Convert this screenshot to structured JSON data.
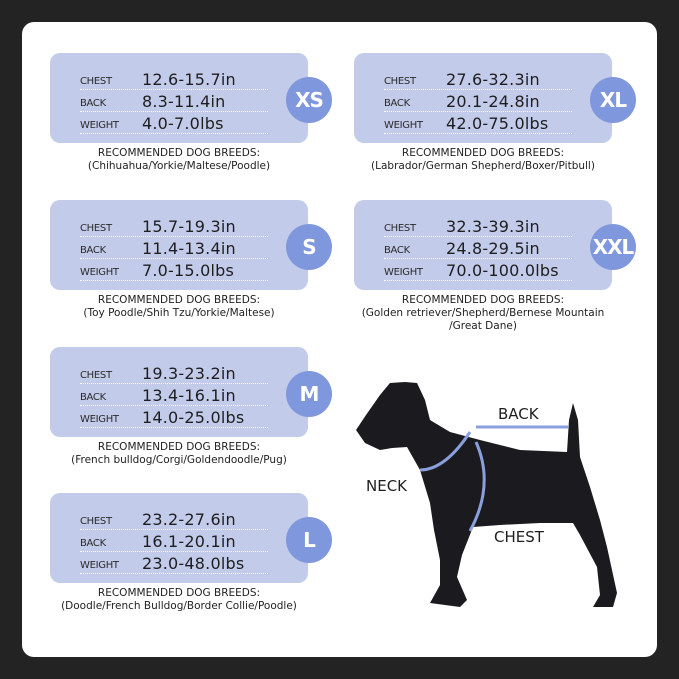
{
  "row_labels": {
    "chest": "CHEST",
    "back": "BACK",
    "weight": "WEIGHT"
  },
  "breeds_heading": "RECOMMENDED DOG BREEDS:",
  "sizes": [
    {
      "size": "XS",
      "chest": "12.6-15.7in",
      "back": "8.3-11.4in",
      "weight": "4.0-7.0lbs",
      "breeds": [
        "(Chihuahua/Yorkie/Maltese/Poodle)"
      ]
    },
    {
      "size": "XL",
      "chest": "27.6-32.3in",
      "back": "20.1-24.8in",
      "weight": "42.0-75.0lbs",
      "breeds": [
        "(Labrador/German Shepherd/Boxer/Pitbull)"
      ]
    },
    {
      "size": "S",
      "chest": "15.7-19.3in",
      "back": "11.4-13.4in",
      "weight": "7.0-15.0lbs",
      "breeds": [
        "(Toy Poodle/Shih Tzu/Yorkie/Maltese)"
      ]
    },
    {
      "size": "XXL",
      "chest": "32.3-39.3in",
      "back": "24.8-29.5in",
      "weight": "70.0-100.0lbs",
      "breeds": [
        "(Golden retriever/Shepherd/Bernese Mountain",
        "/Great Dane)"
      ]
    },
    {
      "size": "M",
      "chest": "19.3-23.2in",
      "back": "13.4-16.1in",
      "weight": "14.0-25.0lbs",
      "breeds": [
        "(French bulldog/Corgi/Goldendoodle/Pug)"
      ]
    },
    {
      "size": "L",
      "chest": "23.2-27.6in",
      "back": "16.1-20.1in",
      "weight": "23.0-48.0lbs",
      "breeds": [
        "(Doodle/French Bulldog/Border Collie/Poodle)"
      ]
    }
  ],
  "diagram": {
    "back": "BACK",
    "neck": "NECK",
    "chest": "CHEST"
  },
  "colors": {
    "box": "#c3cbea",
    "badge": "#7f97dc",
    "harness": "#8aa0dc",
    "background": "#232323"
  }
}
